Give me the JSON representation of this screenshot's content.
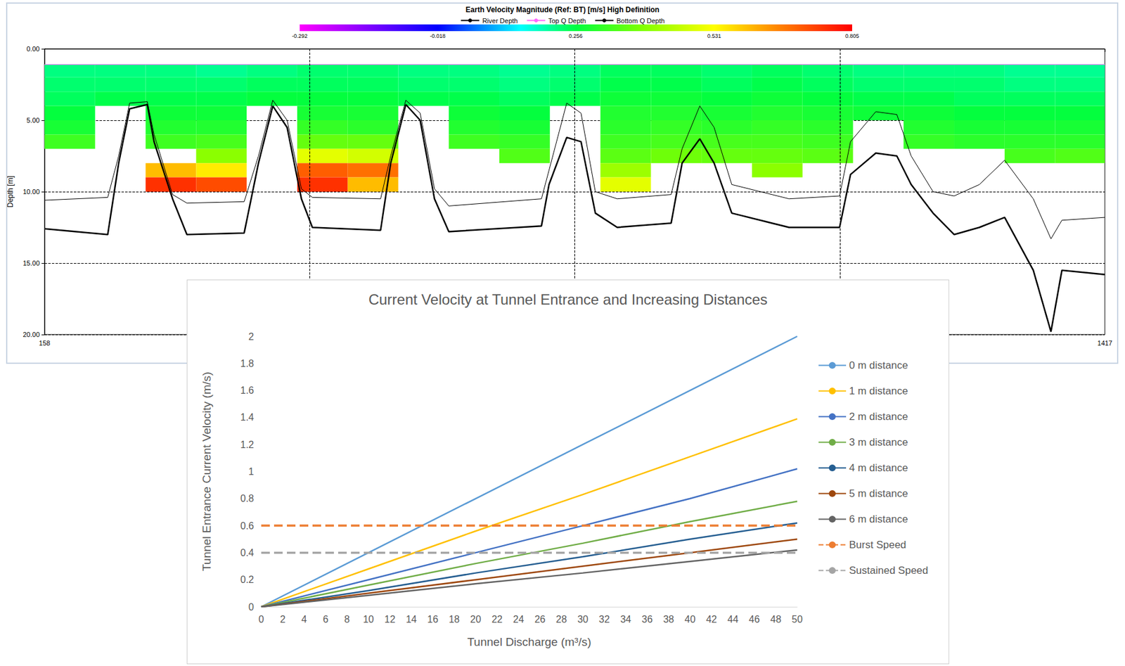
{
  "chart_data": [
    {
      "type": "heatmap",
      "title": "Earth Velocity Magnitude (Ref: BT) [m/s] High Definition",
      "ylabel": "Depth [m]",
      "xlim": [
        158,
        1417
      ],
      "xticks": [
        158,
        1417
      ],
      "ylim": [
        0,
        20
      ],
      "yticks": [
        {
          "value": 0,
          "label": "0.00"
        },
        {
          "value": 5,
          "label": "5.00"
        },
        {
          "value": 10,
          "label": "10.00"
        },
        {
          "value": 15,
          "label": "15.00"
        },
        {
          "value": 20,
          "label": "20.00"
        }
      ],
      "grid": true,
      "legend": "top",
      "colorbar": {
        "range": [
          -0.292,
          0.805
        ],
        "ticks": [
          -0.292,
          -0.018,
          0.256,
          0.531,
          0.805
        ]
      },
      "velocity": {
        "x_edges": [
          158,
          218,
          278,
          338,
          398,
          458,
          518,
          578,
          638,
          698,
          758,
          818,
          878,
          938,
          998,
          1058,
          1118,
          1178,
          1238,
          1298,
          1358,
          1417
        ],
        "depth_edges": [
          1.1,
          2,
          3,
          4,
          5,
          6,
          7,
          8,
          9,
          10
        ],
        "values": [
          [
            0.22,
            0.23,
            0.24,
            0.26,
            0.28,
            0.32,
            null,
            null,
            null
          ],
          [
            0.22,
            0.23,
            0.25,
            null,
            null,
            null,
            null,
            null,
            null
          ],
          [
            0.22,
            0.23,
            0.25,
            0.27,
            0.29,
            0.32,
            null,
            0.6,
            0.75
          ],
          [
            0.21,
            0.23,
            0.25,
            0.27,
            0.29,
            0.33,
            0.4,
            0.55,
            0.72
          ],
          [
            0.22,
            0.24,
            0.26,
            null,
            null,
            null,
            null,
            null,
            null
          ],
          [
            0.23,
            0.24,
            0.26,
            0.28,
            0.31,
            0.36,
            0.5,
            0.7,
            0.75
          ],
          [
            0.23,
            0.24,
            0.26,
            0.28,
            0.3,
            0.36,
            0.48,
            0.68,
            0.6
          ],
          [
            0.22,
            0.23,
            0.25,
            null,
            null,
            null,
            null,
            null,
            null
          ],
          [
            0.22,
            0.23,
            0.25,
            0.27,
            0.29,
            0.32,
            null,
            null,
            null
          ],
          [
            0.21,
            0.22,
            0.24,
            0.26,
            0.28,
            0.31,
            0.34,
            null,
            null
          ],
          [
            0.22,
            0.23,
            0.25,
            null,
            null,
            null,
            null,
            null,
            null
          ],
          [
            0.24,
            0.25,
            0.27,
            0.29,
            0.3,
            0.32,
            0.35,
            0.42,
            0.5
          ],
          [
            0.24,
            0.25,
            0.27,
            0.29,
            0.31,
            0.33,
            0.37,
            null,
            null
          ],
          [
            0.23,
            0.24,
            0.26,
            0.28,
            0.3,
            0.33,
            0.36,
            null,
            null
          ],
          [
            0.24,
            0.25,
            0.27,
            0.29,
            0.31,
            0.33,
            0.36,
            0.4,
            null
          ],
          [
            0.23,
            0.24,
            0.26,
            0.28,
            0.3,
            0.32,
            0.35,
            null,
            null
          ],
          [
            0.22,
            0.23,
            0.25,
            0.27,
            null,
            null,
            null,
            null,
            null
          ],
          [
            0.22,
            0.23,
            0.25,
            0.27,
            0.29,
            0.31,
            null,
            null,
            null
          ],
          [
            0.22,
            0.23,
            0.24,
            0.26,
            0.28,
            0.3,
            null,
            null,
            null
          ],
          [
            0.21,
            0.22,
            0.24,
            0.26,
            0.28,
            0.3,
            0.33,
            null,
            null
          ],
          [
            0.21,
            0.22,
            0.24,
            0.26,
            0.28,
            0.3,
            0.34,
            null,
            null
          ]
        ]
      },
      "series": [
        {
          "name": "River Depth",
          "type": "line",
          "color": "#000000",
          "line_style": "bold",
          "marker": "none",
          "x": [
            158,
            233,
            246,
            259,
            280,
            288,
            310,
            327,
            395,
            412,
            429,
            446,
            463,
            476,
            557,
            569,
            587,
            604,
            621,
            638,
            748,
            757,
            778,
            795,
            812,
            838,
            902,
            915,
            936,
            953,
            974,
            1042,
            1102,
            1115,
            1145,
            1170,
            1187,
            1213,
            1238,
            1268,
            1298,
            1332,
            1353,
            1366,
            1417
          ],
          "values": [
            12.6,
            13.0,
            8.0,
            4.2,
            3.9,
            6.5,
            10.5,
            13.0,
            12.9,
            8.0,
            4.0,
            5.5,
            10.5,
            12.5,
            12.7,
            8.0,
            3.9,
            5.0,
            10.5,
            12.8,
            12.4,
            9.5,
            6.2,
            6.5,
            11.5,
            12.5,
            12.2,
            8.0,
            6.3,
            8.0,
            11.5,
            12.5,
            12.5,
            8.8,
            7.3,
            7.5,
            9.5,
            11.5,
            13.0,
            12.5,
            11.8,
            15.5,
            19.8,
            15.5,
            15.8
          ]
        },
        {
          "name": "Top Q Depth",
          "type": "line",
          "color": "#ff66ff",
          "line_style": "solid",
          "marker": "none",
          "x": [
            158,
            1417
          ],
          "values": [
            1.1,
            1.1
          ]
        },
        {
          "name": "Bottom Q Depth",
          "type": "line",
          "color": "#000000",
          "line_style": "solid",
          "marker": "none",
          "x": [
            158,
            233,
            246,
            259,
            280,
            288,
            310,
            327,
            395,
            412,
            429,
            446,
            463,
            476,
            557,
            569,
            587,
            604,
            621,
            638,
            748,
            757,
            778,
            795,
            812,
            838,
            902,
            915,
            936,
            953,
            974,
            1042,
            1102,
            1115,
            1145,
            1170,
            1187,
            1213,
            1238,
            1268,
            1298,
            1332,
            1353,
            1366,
            1417
          ],
          "values": [
            10.6,
            10.4,
            7.5,
            3.8,
            3.7,
            6.0,
            10.2,
            10.8,
            10.7,
            7.5,
            3.6,
            5.0,
            9.8,
            10.4,
            10.5,
            7.5,
            3.6,
            4.5,
            9.8,
            11.0,
            10.5,
            8.5,
            3.8,
            4.5,
            10.0,
            10.5,
            10.2,
            7.0,
            4.0,
            5.5,
            9.5,
            10.5,
            10.3,
            6.5,
            4.4,
            4.6,
            7.5,
            10.0,
            10.3,
            9.5,
            7.8,
            10.5,
            13.3,
            12.0,
            11.8
          ]
        }
      ]
    },
    {
      "type": "line",
      "title": "Current Velocity at Tunnel Entrance and Increasing Distances",
      "xlabel": "Tunnel Discharge (m³/s)",
      "ylabel": "Tunnel Entrance Current Velocity (m/s)",
      "x": [
        0,
        10,
        20,
        30,
        40,
        50
      ],
      "xlim": [
        0,
        50
      ],
      "xticks": [
        0,
        2,
        4,
        6,
        8,
        10,
        12,
        14,
        16,
        18,
        20,
        22,
        24,
        26,
        28,
        30,
        32,
        34,
        36,
        38,
        40,
        42,
        44,
        46,
        48,
        50
      ],
      "ylim": [
        0,
        2
      ],
      "yticks": [
        0,
        0.2,
        0.4,
        0.6,
        0.8,
        1,
        1.2,
        1.4,
        1.6,
        1.8,
        2
      ],
      "grid": false,
      "legend": "right",
      "series": [
        {
          "name": "0 m distance",
          "color": "#5b9bd5",
          "line_style": "solid",
          "marker": "none",
          "values": [
            0,
            0.4,
            0.8,
            1.2,
            1.6,
            2.0
          ]
        },
        {
          "name": "1 m distance",
          "color": "#ffc000",
          "line_style": "solid",
          "marker": "none",
          "values": [
            0,
            0.28,
            0.56,
            0.83,
            1.11,
            1.39
          ]
        },
        {
          "name": "2 m distance",
          "color": "#4472c4",
          "line_style": "solid",
          "marker": "none",
          "values": [
            0,
            0.2,
            0.4,
            0.6,
            0.8,
            1.02
          ]
        },
        {
          "name": "3 m distance",
          "color": "#70ad47",
          "line_style": "solid",
          "marker": "none",
          "values": [
            0,
            0.16,
            0.32,
            0.47,
            0.63,
            0.78
          ]
        },
        {
          "name": "4 m distance",
          "color": "#255e91",
          "line_style": "solid",
          "marker": "none",
          "values": [
            0,
            0.12,
            0.25,
            0.37,
            0.5,
            0.62
          ]
        },
        {
          "name": "5 m distance",
          "color": "#9e480e",
          "line_style": "solid",
          "marker": "none",
          "values": [
            0,
            0.1,
            0.2,
            0.3,
            0.4,
            0.5
          ]
        },
        {
          "name": "6 m distance",
          "color": "#636363",
          "line_style": "solid",
          "marker": "none",
          "values": [
            0,
            0.085,
            0.17,
            0.25,
            0.335,
            0.42
          ]
        },
        {
          "name": "Burst Speed",
          "color": "#ed7d31",
          "line_style": "dashed",
          "marker": "none",
          "values": [
            0.6,
            0.6,
            0.6,
            0.6,
            0.6,
            0.6
          ]
        },
        {
          "name": "Sustained Speed",
          "color": "#a5a5a5",
          "line_style": "dashed",
          "marker": "none",
          "values": [
            0.4,
            0.4,
            0.4,
            0.4,
            0.4,
            0.4
          ]
        }
      ]
    }
  ]
}
